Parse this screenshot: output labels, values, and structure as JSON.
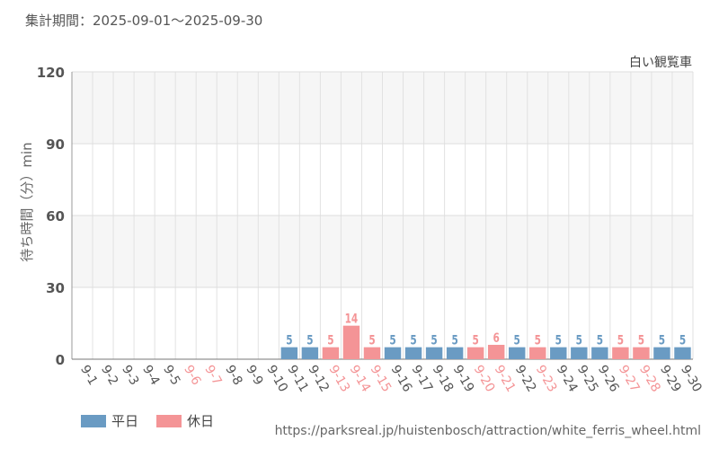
{
  "header": {
    "period": "集計期間：2025-09-01～2025-09-30"
  },
  "footer": {
    "url": "https://parksreal.jp/huistenbosch/attraction/white_ferris_wheel.html"
  },
  "colors": {
    "weekday": "#6a9bc3",
    "holiday": "#f49496",
    "band": "#f6f6f6",
    "grid": "#e2e2e2"
  },
  "chart_data": {
    "type": "bar",
    "title": "白い観覧車",
    "ylabel": "待ち時間（分）min",
    "xlabel": "",
    "ylim": [
      0,
      120
    ],
    "yticks": [
      0,
      30,
      60,
      90,
      120
    ],
    "categories": [
      "9-1",
      "9-2",
      "9-3",
      "9-4",
      "9-5",
      "9-6",
      "9-7",
      "9-8",
      "9-9",
      "9-10",
      "9-11",
      "9-12",
      "9-13",
      "9-14",
      "9-15",
      "9-16",
      "9-17",
      "9-18",
      "9-19",
      "9-20",
      "9-21",
      "9-22",
      "9-23",
      "9-24",
      "9-25",
      "9-26",
      "9-27",
      "9-28",
      "9-29",
      "9-30"
    ],
    "values": [
      null,
      null,
      null,
      null,
      null,
      null,
      null,
      null,
      null,
      null,
      5,
      5,
      5,
      14,
      5,
      5,
      5,
      5,
      5,
      5,
      6,
      5,
      5,
      5,
      5,
      5,
      5,
      5,
      5,
      5
    ],
    "day_type": [
      "weekday",
      "weekday",
      "weekday",
      "weekday",
      "weekday",
      "holiday",
      "holiday",
      "weekday",
      "weekday",
      "weekday",
      "weekday",
      "weekday",
      "holiday",
      "holiday",
      "holiday",
      "weekday",
      "weekday",
      "weekday",
      "weekday",
      "holiday",
      "holiday",
      "weekday",
      "holiday",
      "weekday",
      "weekday",
      "weekday",
      "holiday",
      "holiday",
      "weekday",
      "weekday"
    ],
    "legend": [
      {
        "key": "weekday",
        "label": "平日"
      },
      {
        "key": "holiday",
        "label": "休日"
      }
    ],
    "legend_position": "bottom-left"
  }
}
